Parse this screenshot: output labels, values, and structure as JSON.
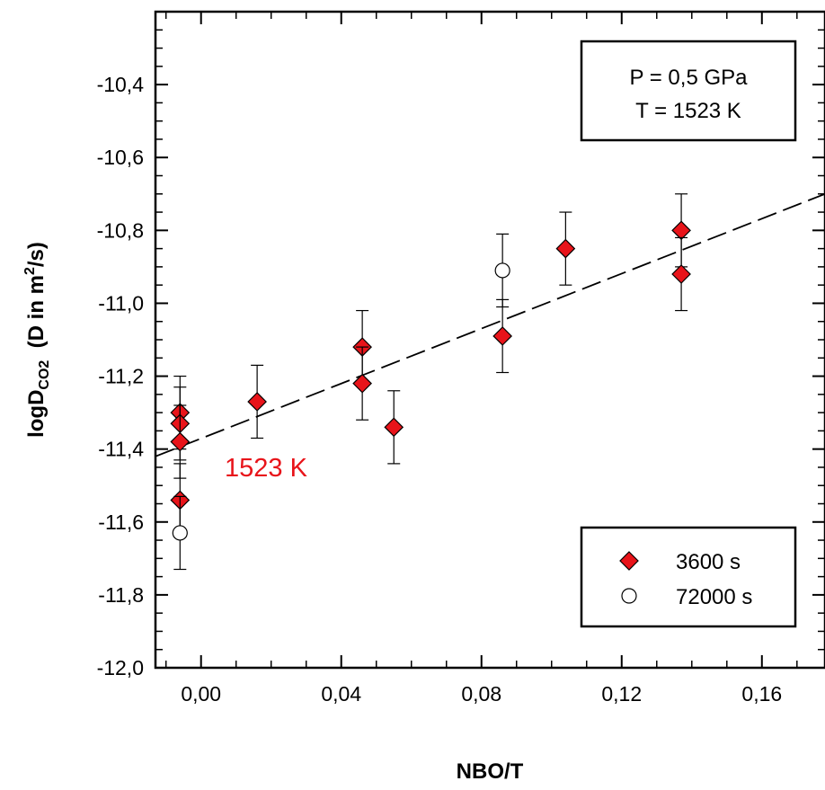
{
  "chart_data": {
    "type": "scatter",
    "xlabel": "NBO/T",
    "ylabel": {
      "prefix": "logD",
      "subscript": "CO2",
      "suffix_before_sup": "  (D in m",
      "superscript": "2",
      "suffix_after_sup": "/s)"
    },
    "xlim": [
      -0.013,
      0.178
    ],
    "ylim": [
      -12.0,
      -10.2
    ],
    "xticks": [
      0.0,
      0.04,
      0.08,
      0.12,
      0.16
    ],
    "xtick_labels": [
      "0,00",
      "0,04",
      "0,08",
      "0,12",
      "0,16"
    ],
    "yticks": [
      -12.0,
      -11.8,
      -11.6,
      -11.4,
      -11.2,
      -11.0,
      -10.8,
      -10.6,
      -10.4
    ],
    "ytick_labels": [
      "-12,0",
      "-11,8",
      "-11,6",
      "-11,4",
      "-11,2",
      "-11,0",
      "-10,8",
      "-10,6",
      "-10,4"
    ],
    "conditions": [
      "P = 0,5 GPa",
      "T = 1523 K"
    ],
    "annotation": {
      "text": "1523 K",
      "color": "#e8141a"
    },
    "series": [
      {
        "name": "3600 s",
        "marker": "diamond",
        "color": "#e8141a",
        "points": [
          {
            "x": -0.006,
            "y": -11.3,
            "err": 0.1
          },
          {
            "x": -0.006,
            "y": -11.33,
            "err": 0.1
          },
          {
            "x": -0.006,
            "y": -11.38,
            "err": 0.1
          },
          {
            "x": -0.006,
            "y": -11.54,
            "err": 0.1
          },
          {
            "x": 0.016,
            "y": -11.27,
            "err": 0.1
          },
          {
            "x": 0.046,
            "y": -11.12,
            "err": 0.1
          },
          {
            "x": 0.046,
            "y": -11.22,
            "err": 0.1
          },
          {
            "x": 0.055,
            "y": -11.34,
            "err": 0.1
          },
          {
            "x": 0.086,
            "y": -11.09,
            "err": 0.1
          },
          {
            "x": 0.104,
            "y": -10.85,
            "err": 0.1
          },
          {
            "x": 0.137,
            "y": -10.8,
            "err": 0.1
          },
          {
            "x": 0.137,
            "y": -10.92,
            "err": 0.1
          }
        ]
      },
      {
        "name": "72000 s",
        "marker": "circle",
        "color": "#ffffff",
        "points": [
          {
            "x": -0.006,
            "y": -11.63,
            "err": 0.1
          },
          {
            "x": 0.086,
            "y": -10.91,
            "err": 0.1
          }
        ]
      }
    ],
    "fit_line": {
      "style": "dashed",
      "color": "#000000",
      "x": [
        -0.013,
        0.178
      ],
      "y": [
        -11.42,
        -10.7
      ]
    }
  }
}
